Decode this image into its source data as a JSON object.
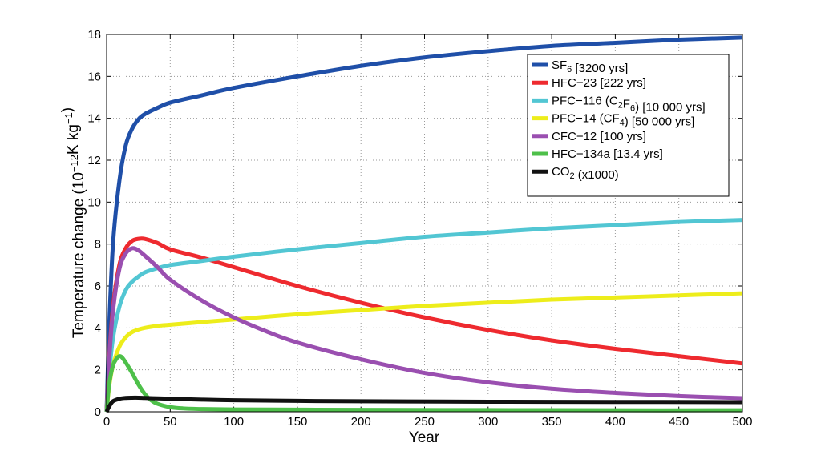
{
  "chart_data": {
    "type": "line",
    "xlabel": "Year",
    "ylabel": {
      "base": "Temperature change (10",
      "sup1": "−12",
      "mid": "K kg",
      "sup2": "−1",
      "end": ")"
    },
    "xlim": [
      0,
      500
    ],
    "ylim": [
      0,
      18
    ],
    "xticks": [
      0,
      50,
      100,
      150,
      200,
      250,
      300,
      350,
      400,
      450,
      500
    ],
    "yticks": [
      0,
      2,
      4,
      6,
      8,
      10,
      12,
      14,
      16,
      18
    ],
    "grid": true,
    "grid_style": "dotted",
    "legend_position": "top-right",
    "series": [
      {
        "name": "SF6 [3200 yrs]",
        "legend": [
          [
            "SF",
            ""
          ],
          [
            "6",
            "sub"
          ],
          [
            " [3200 yrs]",
            ""
          ]
        ],
        "color": "#1f4fa8",
        "x": [
          0,
          2,
          5,
          10,
          15,
          20,
          25,
          30,
          40,
          50,
          75,
          100,
          150,
          200,
          250,
          300,
          350,
          400,
          450,
          500
        ],
        "y": [
          0,
          4.0,
          8.0,
          11.0,
          12.7,
          13.5,
          13.95,
          14.2,
          14.5,
          14.75,
          15.1,
          15.45,
          16.0,
          16.5,
          16.9,
          17.2,
          17.45,
          17.6,
          17.75,
          17.85
        ]
      },
      {
        "name": "HFC-23 [222 yrs]",
        "legend": [
          [
            "HFC−23 [222 yrs]",
            ""
          ]
        ],
        "color": "#ee2a2f",
        "x": [
          0,
          2,
          5,
          10,
          15,
          20,
          25,
          30,
          40,
          50,
          75,
          100,
          150,
          200,
          250,
          300,
          350,
          400,
          450,
          500
        ],
        "y": [
          0,
          2.5,
          5.0,
          7.0,
          7.8,
          8.15,
          8.25,
          8.25,
          8.05,
          7.75,
          7.35,
          6.9,
          6.0,
          5.2,
          4.5,
          3.9,
          3.4,
          3.0,
          2.65,
          2.3
        ]
      },
      {
        "name": "PFC-116 (C2F6) [10 000 yrs]",
        "legend": [
          [
            "PFC−116 (C",
            ""
          ],
          [
            "2",
            "sub"
          ],
          [
            "F",
            ""
          ],
          [
            "6",
            "sub"
          ],
          [
            ") [10 000 yrs]",
            ""
          ]
        ],
        "color": "#52c6d3",
        "x": [
          0,
          2,
          5,
          10,
          15,
          20,
          25,
          30,
          40,
          50,
          75,
          100,
          150,
          200,
          250,
          300,
          350,
          400,
          450,
          500
        ],
        "y": [
          0,
          1.8,
          3.5,
          5.0,
          5.8,
          6.2,
          6.45,
          6.65,
          6.85,
          7.0,
          7.2,
          7.4,
          7.75,
          8.05,
          8.35,
          8.55,
          8.75,
          8.9,
          9.05,
          9.15
        ]
      },
      {
        "name": "PFC-14 (CF4) [50 000 yrs]",
        "legend": [
          [
            "PFC−14 (CF",
            ""
          ],
          [
            "4",
            "sub"
          ],
          [
            ") [50 000 yrs]",
            ""
          ]
        ],
        "color": "#eded1b",
        "x": [
          0,
          2,
          5,
          10,
          15,
          20,
          25,
          30,
          40,
          50,
          75,
          100,
          150,
          200,
          250,
          300,
          350,
          400,
          450,
          500
        ],
        "y": [
          0,
          1.2,
          2.2,
          3.1,
          3.55,
          3.8,
          3.92,
          4.0,
          4.1,
          4.15,
          4.28,
          4.4,
          4.65,
          4.85,
          5.05,
          5.2,
          5.35,
          5.45,
          5.55,
          5.65
        ]
      },
      {
        "name": "CFC-12 [100 yrs]",
        "legend": [
          [
            "CFC−12 [100 yrs]",
            ""
          ]
        ],
        "color": "#9a4fb0",
        "x": [
          0,
          2,
          5,
          10,
          15,
          20,
          25,
          30,
          40,
          50,
          75,
          100,
          125,
          150,
          200,
          250,
          300,
          350,
          400,
          450,
          500
        ],
        "y": [
          0,
          2.4,
          4.8,
          6.8,
          7.55,
          7.8,
          7.7,
          7.45,
          6.9,
          6.3,
          5.3,
          4.5,
          3.85,
          3.3,
          2.5,
          1.85,
          1.4,
          1.1,
          0.9,
          0.75,
          0.65
        ]
      },
      {
        "name": "HFC-134a [13.4 yrs]",
        "legend": [
          [
            "HFC−134a [13.4 yrs]",
            ""
          ]
        ],
        "color": "#4ec04a",
        "x": [
          0,
          2,
          5,
          8,
          10,
          12,
          15,
          20,
          25,
          30,
          35,
          40,
          50,
          60,
          75,
          100,
          150,
          200,
          300,
          400,
          500
        ],
        "y": [
          0,
          1.3,
          2.2,
          2.55,
          2.65,
          2.6,
          2.35,
          1.85,
          1.3,
          0.85,
          0.55,
          0.38,
          0.22,
          0.16,
          0.13,
          0.11,
          0.1,
          0.09,
          0.08,
          0.07,
          0.07
        ]
      },
      {
        "name": "CO2 (x1000)",
        "legend": [
          [
            "CO",
            ""
          ],
          [
            "2",
            "sub"
          ],
          [
            " (x1000)",
            ""
          ]
        ],
        "color": "#111111",
        "x": [
          0,
          2,
          5,
          10,
          15,
          20,
          25,
          30,
          40,
          50,
          75,
          100,
          150,
          200,
          300,
          400,
          500
        ],
        "y": [
          0,
          0.25,
          0.5,
          0.62,
          0.66,
          0.67,
          0.67,
          0.66,
          0.64,
          0.62,
          0.58,
          0.55,
          0.52,
          0.5,
          0.48,
          0.47,
          0.46
        ]
      }
    ]
  }
}
